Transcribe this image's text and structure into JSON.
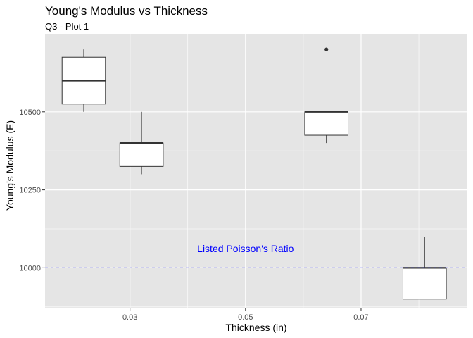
{
  "chart_data": {
    "type": "box",
    "title": "Young's Modulus vs Thickness",
    "subtitle": "Q3 - Plot 1",
    "xlabel": "Thickness (in)",
    "ylabel": "Young's Modulus (E)",
    "x_ticks": [
      0.03,
      0.05,
      0.07
    ],
    "x_tick_labels": [
      "0.03",
      "0.05",
      "0.07"
    ],
    "y_ticks": [
      10000,
      10250,
      10500
    ],
    "y_tick_labels": [
      "10000",
      "10250",
      "10500"
    ],
    "xlim": [
      0.0153,
      0.0884
    ],
    "ylim": [
      9870,
      10750
    ],
    "grid": true,
    "colors": {
      "panel": "#e5e5e5",
      "grid": "#ffffff",
      "box_fill": "#ffffff",
      "box_line": "#333333",
      "reference_line": "#0000ff",
      "annotation": "#0000ff"
    },
    "boxes": [
      {
        "x": 0.022,
        "width": 0.0075,
        "lower_whisker": 10500,
        "q1": 10525,
        "median": 10600,
        "q3": 10675,
        "upper_whisker": 10700,
        "outliers": []
      },
      {
        "x": 0.032,
        "width": 0.0075,
        "lower_whisker": 10300,
        "q1": 10325,
        "median": 10400,
        "q3": 10400,
        "upper_whisker": 10500,
        "outliers": []
      },
      {
        "x": 0.064,
        "width": 0.0075,
        "lower_whisker": 10400,
        "q1": 10425,
        "median": 10500,
        "q3": 10500,
        "upper_whisker": 10500,
        "outliers": [
          10700
        ]
      },
      {
        "x": 0.081,
        "width": 0.0075,
        "lower_whisker": 9900,
        "q1": 9900,
        "median": 10000,
        "q3": 10000,
        "upper_whisker": 10100,
        "outliers": []
      }
    ],
    "reference_line": {
      "y": 10000,
      "style": "dashed"
    },
    "annotation": {
      "text": "Listed Poisson's Ratio",
      "x": 0.05,
      "y": 10050
    }
  }
}
